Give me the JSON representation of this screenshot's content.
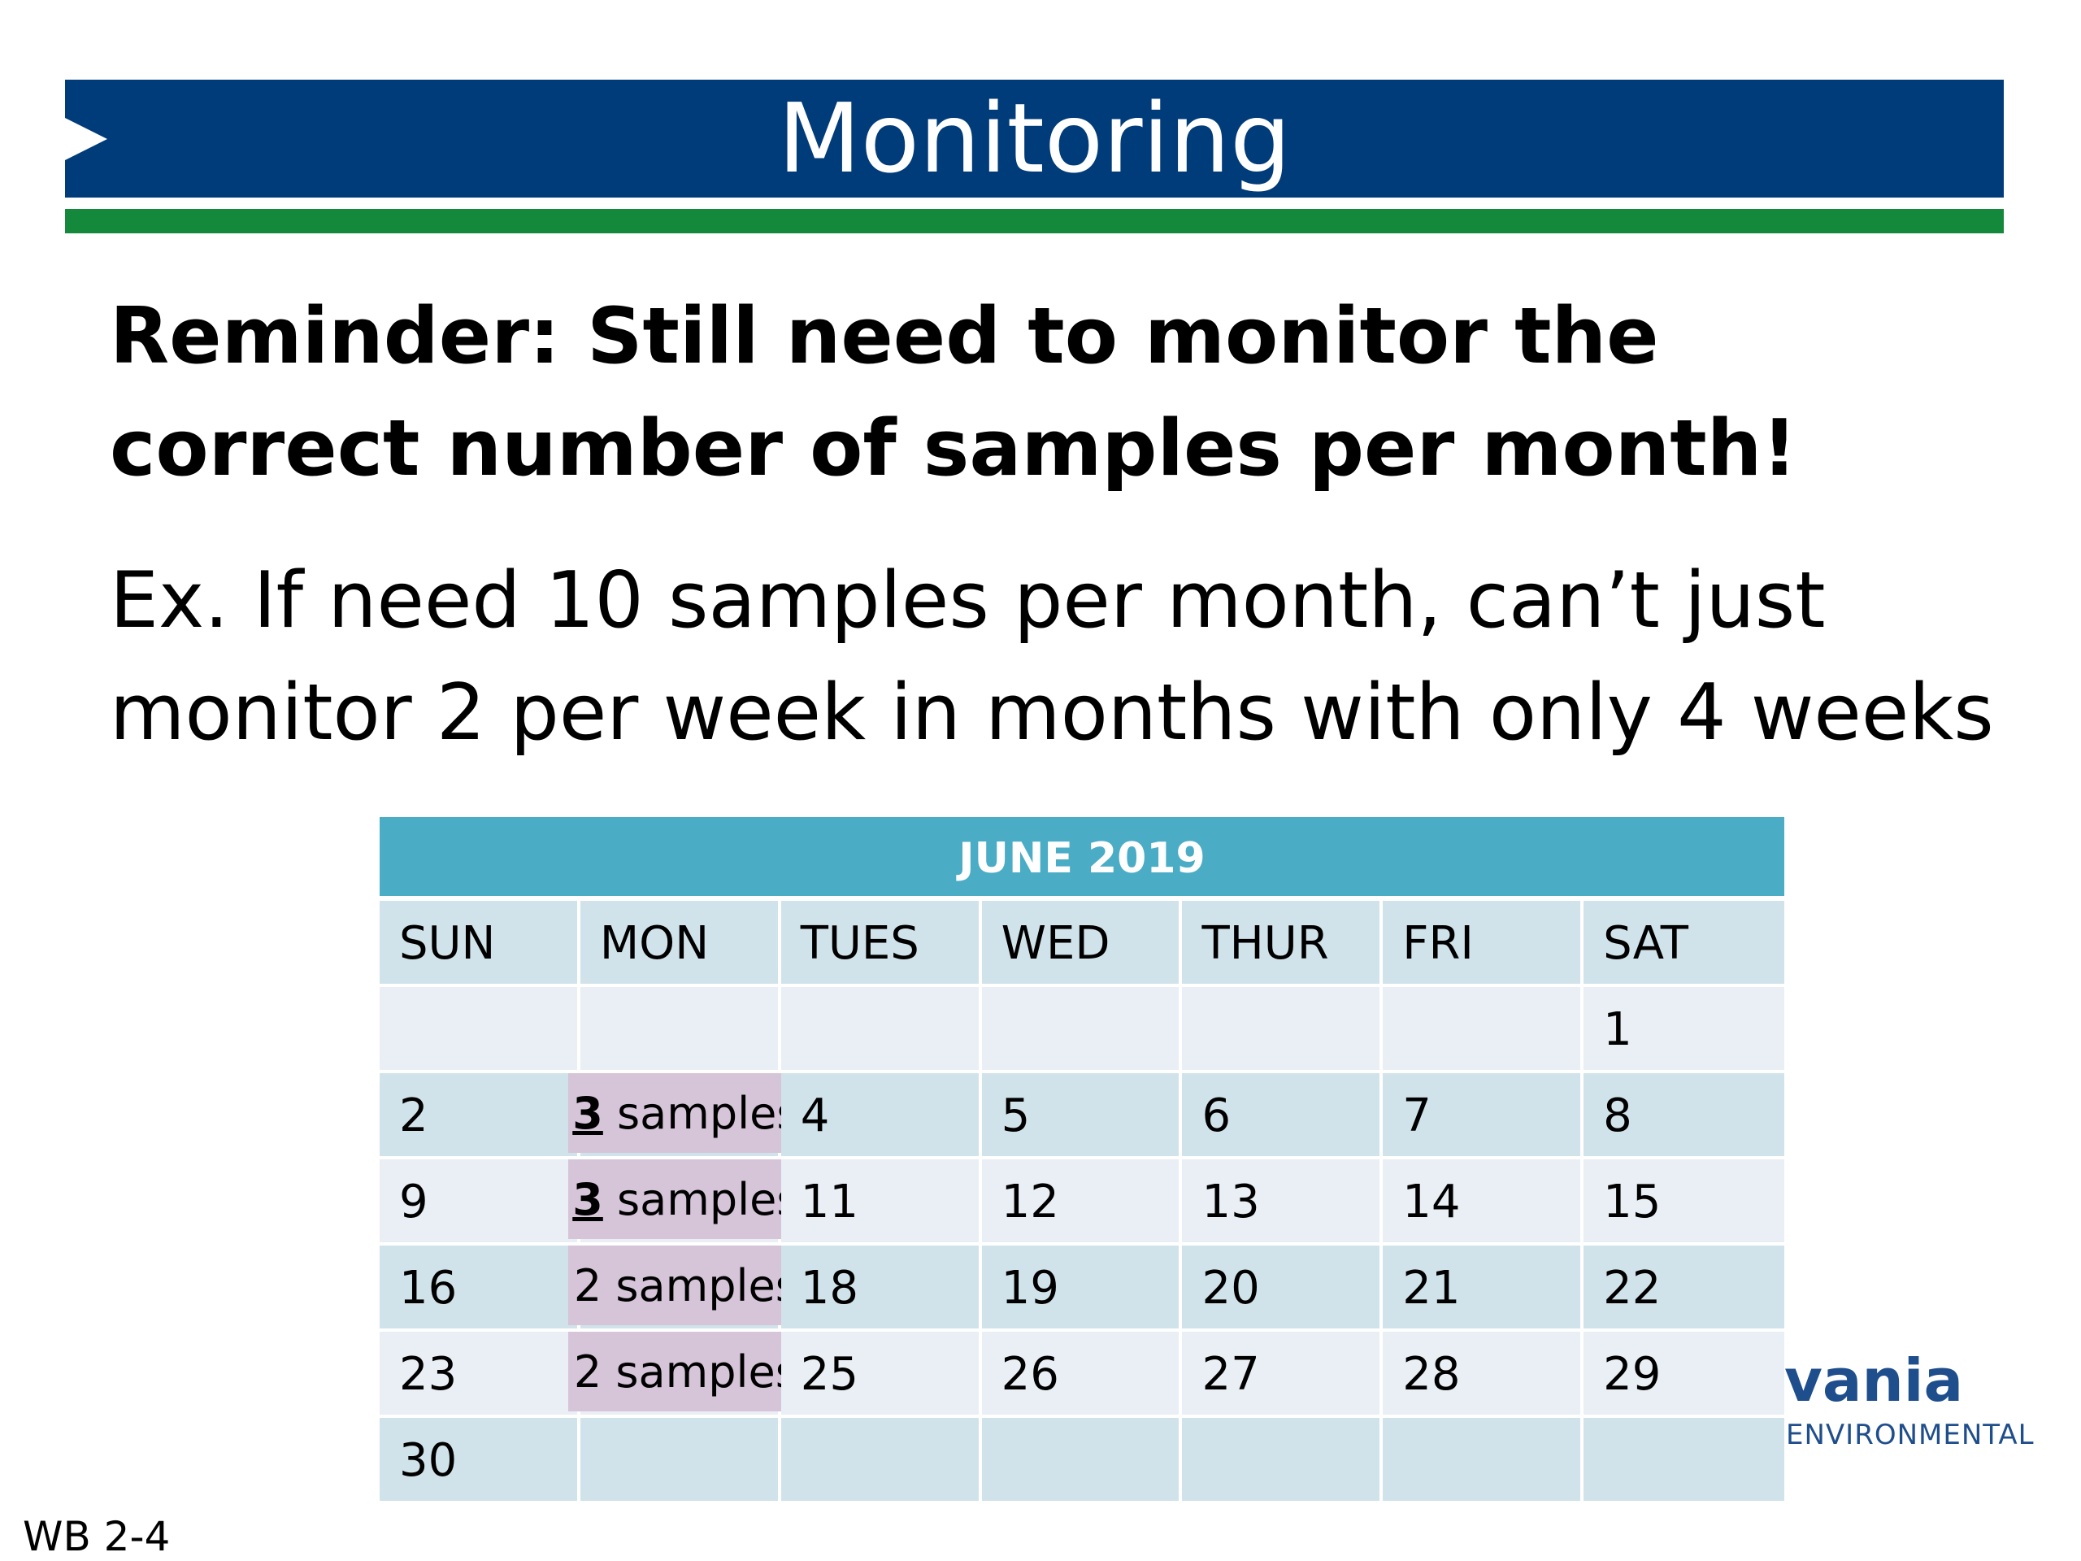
{
  "slide": {
    "title": "Monitoring",
    "reminder": "Reminder: Still need to monitor the correct number of samples per month!",
    "example": "Ex. If need 10 samples per month, can’t just monitor 2 per week in months with only 4 weeks",
    "footer_code": "WB 2-4"
  },
  "logo": {
    "word": "vania",
    "sub": "ENVIRONMENTAL"
  },
  "calendar": {
    "title": "JUNE 2019",
    "days": [
      "SUN",
      "MON",
      "TUES",
      "WED",
      "THUR",
      "FRI",
      "SAT"
    ],
    "weeks": [
      [
        "",
        "",
        "",
        "",
        "",
        "",
        "1"
      ],
      [
        "2",
        "",
        "4",
        "5",
        "6",
        "7",
        "8"
      ],
      [
        "9",
        "",
        "11",
        "12",
        "13",
        "14",
        "15"
      ],
      [
        "16",
        "",
        "18",
        "19",
        "20",
        "21",
        "22"
      ],
      [
        "23",
        "",
        "25",
        "26",
        "27",
        "28",
        "29"
      ],
      [
        "30",
        "",
        "",
        "",
        "",
        "",
        ""
      ]
    ],
    "samples": [
      {
        "count": "3",
        "label": " samples",
        "bold": true
      },
      {
        "count": "3",
        "label": " samples",
        "bold": true
      },
      {
        "count": "2",
        "label": " samples",
        "bold": false
      },
      {
        "count": "2",
        "label": " samples",
        "bold": false
      }
    ]
  },
  "colors": {
    "title_bar": "#003b7a",
    "title_stripe": "#14893c",
    "calendar_header": "#4bacc6",
    "sample_highlight": "#d6c4d9"
  }
}
